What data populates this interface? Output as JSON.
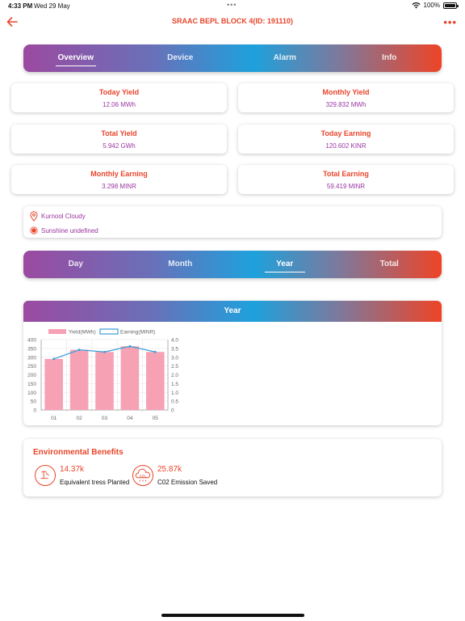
{
  "status_bar": {
    "time": "4:33 PM",
    "date": "Wed 29 May",
    "battery": "100%"
  },
  "header": {
    "title": "SRAAC BEPL BLOCK 4(ID: 191110)"
  },
  "main_tabs": [
    {
      "label": "Overview",
      "active": true
    },
    {
      "label": "Device",
      "active": false
    },
    {
      "label": "Alarm",
      "active": false
    },
    {
      "label": "Info",
      "active": false
    }
  ],
  "stats": [
    {
      "label": "Today Yield",
      "value": "12.06 MWh"
    },
    {
      "label": "Monthly Yield",
      "value": "329.832 MWh"
    },
    {
      "label": "Total Yield",
      "value": "5.942 GWh"
    },
    {
      "label": "Today Earning",
      "value": "120.602 KINR"
    },
    {
      "label": "Monthly Earning",
      "value": "3.298 MINR"
    },
    {
      "label": "Total Earning",
      "value": "59.419 MINR"
    }
  ],
  "weather": {
    "location": "Kurnool Cloudy",
    "sunshine": "Sunshine undefined"
  },
  "period_tabs": [
    {
      "label": "Day",
      "active": false
    },
    {
      "label": "Month",
      "active": false
    },
    {
      "label": "Year",
      "active": true
    },
    {
      "label": "Total",
      "active": false
    }
  ],
  "chart_title": "Year",
  "chart_data": {
    "type": "bar",
    "categories": [
      "01",
      "02",
      "03",
      "04",
      "05"
    ],
    "series": [
      {
        "name": "Yield(MWh)",
        "type": "bar",
        "axis": "left",
        "values": [
          290,
          342,
          330,
          362,
          330
        ],
        "color": "#f7a1b4"
      },
      {
        "name": "Earning(MINR)",
        "type": "line",
        "axis": "right",
        "values": [
          2.9,
          3.42,
          3.3,
          3.62,
          3.3
        ],
        "color": "#3a9fd8"
      }
    ],
    "ylim": [
      0,
      400
    ],
    "y_ticks": [
      "400",
      "350",
      "300",
      "250",
      "200",
      "150",
      "100",
      "50",
      "0"
    ],
    "y2lim": [
      0,
      4.0
    ],
    "y2_ticks": [
      "4.0",
      "3.5",
      "3.0",
      "2.5",
      "2.0",
      "1.5",
      "1.0",
      "0.5",
      "0"
    ],
    "grid": true,
    "legend": "top-left"
  },
  "env": {
    "title": "Environmental Benefits",
    "trees_value": "14.37k",
    "trees_label": "Equivalent tress Planted",
    "co2_value": "25.87k",
    "co2_label": "C02 Emission Saved",
    "co2_icon_text": "CO₂"
  },
  "colors": {
    "accent": "#e8452c",
    "value": "#9a35a0",
    "bar": "#f7a1b4",
    "line": "#3a9fd8"
  }
}
